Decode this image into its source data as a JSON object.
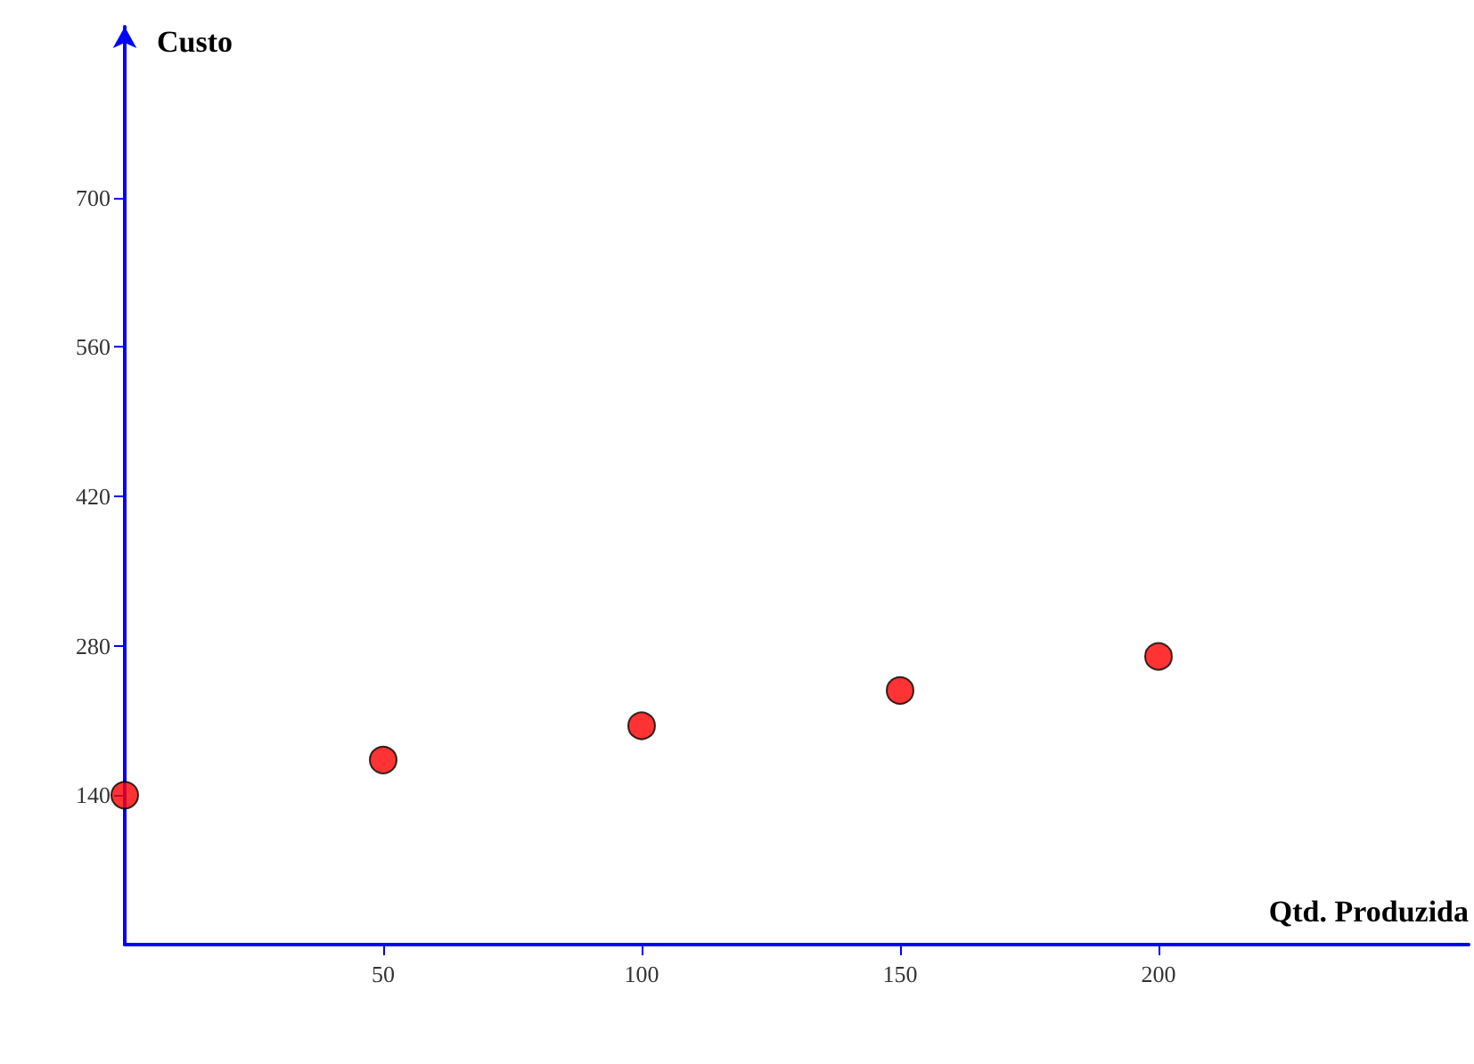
{
  "chart_data": {
    "type": "scatter",
    "xlabel": "Qtd. Produzida",
    "ylabel": "Custo",
    "x": [
      0,
      50,
      100,
      150,
      200
    ],
    "values": [
      140,
      173,
      205,
      238,
      270
    ],
    "color": "#ff0000",
    "marker": "circle",
    "xlim": [
      0,
      260
    ],
    "ylim": [
      0,
      860
    ],
    "xticks": [
      50,
      100,
      150,
      200
    ],
    "yticks": [
      140,
      280,
      420,
      560,
      700
    ],
    "grid": false
  }
}
